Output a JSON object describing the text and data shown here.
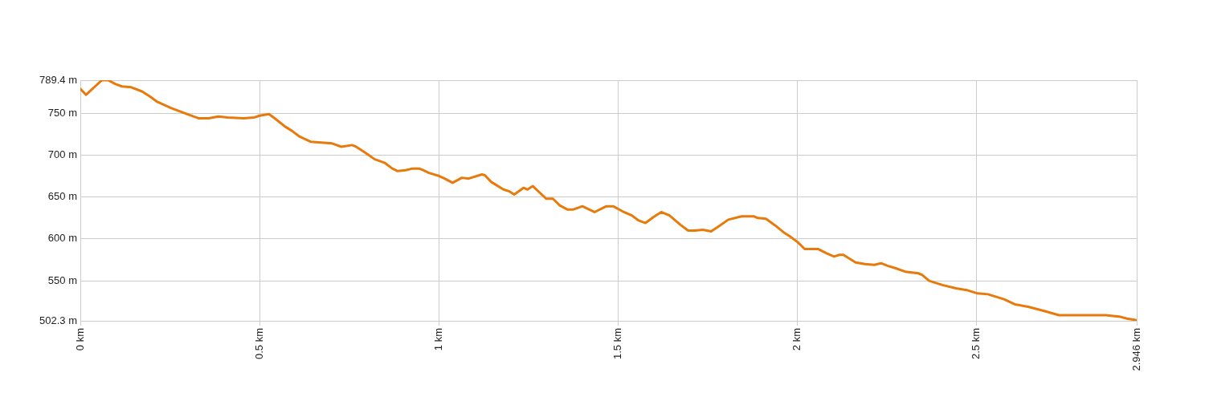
{
  "chart_data": {
    "type": "line",
    "color": "#e8790b",
    "marker": "none",
    "grid": true,
    "legend": false,
    "xlim": [
      0,
      2.946
    ],
    "ylim": [
      502.3,
      789.4
    ],
    "xticks": [
      {
        "value": 0,
        "label": "0 km"
      },
      {
        "value": 0.5,
        "label": "0.5 km"
      },
      {
        "value": 1,
        "label": "1 km"
      },
      {
        "value": 1.5,
        "label": "1.5 km"
      },
      {
        "value": 2,
        "label": "2 km"
      },
      {
        "value": 2.5,
        "label": "2.5 km"
      },
      {
        "value": 2.946,
        "label": "2.946 km"
      }
    ],
    "yticks": [
      {
        "value": 502.3,
        "label": "502.3 m"
      },
      {
        "value": 550,
        "label": "550 m"
      },
      {
        "value": 600,
        "label": "600 m"
      },
      {
        "value": 650,
        "label": "650 m"
      },
      {
        "value": 700,
        "label": "700 m"
      },
      {
        "value": 750,
        "label": "750 m"
      },
      {
        "value": 789.4,
        "label": "789.4 m"
      }
    ],
    "x": [
      0,
      0.016,
      0.06,
      0.078,
      0.097,
      0.116,
      0.142,
      0.172,
      0.194,
      0.213,
      0.254,
      0.291,
      0.329,
      0.358,
      0.385,
      0.411,
      0.455,
      0.485,
      0.5,
      0.526,
      0.545,
      0.571,
      0.59,
      0.612,
      0.642,
      0.672,
      0.702,
      0.728,
      0.758,
      0.769,
      0.791,
      0.821,
      0.848,
      0.87,
      0.885,
      0.907,
      0.926,
      0.945,
      0.956,
      0.971,
      1.001,
      1.016,
      1.038,
      1.064,
      1.083,
      1.12,
      1.128,
      1.146,
      1.18,
      1.195,
      1.21,
      1.236,
      1.247,
      1.262,
      1.299,
      1.318,
      1.337,
      1.359,
      1.374,
      1.4,
      1.434,
      1.467,
      1.486,
      1.516,
      1.538,
      1.557,
      1.576,
      1.598,
      1.62,
      1.643,
      1.673,
      1.695,
      1.714,
      1.736,
      1.759,
      1.777,
      1.807,
      1.844,
      1.878,
      1.889,
      1.912,
      1.938,
      1.964,
      1.979,
      2.001,
      2.02,
      2.057,
      2.08,
      2.102,
      2.117,
      2.128,
      2.162,
      2.188,
      2.214,
      2.233,
      2.251,
      2.274,
      2.3,
      2.337,
      2.348,
      2.367,
      2.404,
      2.442,
      2.472,
      2.502,
      2.531,
      2.576,
      2.606,
      2.643,
      2.688,
      2.729,
      2.86,
      2.901,
      2.919,
      2.946
    ],
    "values": [
      779,
      772,
      789.4,
      789.4,
      785,
      782,
      781,
      776,
      770,
      764,
      756,
      750,
      744,
      744,
      746,
      745,
      744,
      745,
      747,
      749,
      743,
      734,
      729,
      722,
      716,
      715,
      714,
      710,
      712,
      710,
      704,
      695,
      691,
      684,
      681,
      682,
      684,
      684,
      682,
      679,
      675,
      672,
      667,
      673,
      672,
      677,
      676,
      668,
      659,
      657,
      653,
      661,
      659,
      663,
      648,
      648,
      640,
      635,
      635,
      639,
      632,
      639,
      639,
      632,
      628,
      622,
      619,
      626,
      632,
      628,
      617,
      610,
      610,
      611,
      609,
      614,
      623,
      627,
      627,
      625,
      624,
      616,
      607,
      603,
      596,
      588,
      588,
      583,
      579,
      581,
      581,
      572,
      570,
      569,
      571,
      568,
      565,
      561,
      559,
      557,
      550,
      545,
      541,
      539,
      535,
      534,
      528,
      522,
      519,
      514,
      509,
      509,
      507,
      505,
      503
    ]
  }
}
